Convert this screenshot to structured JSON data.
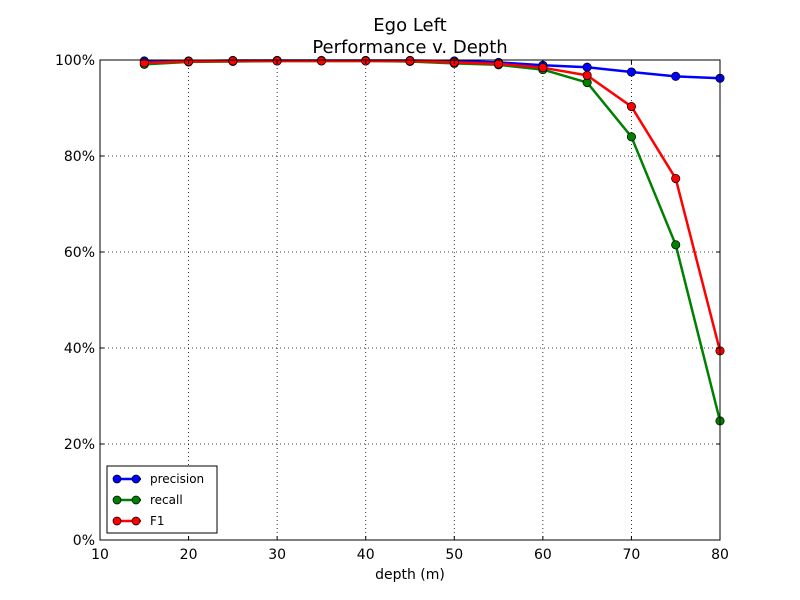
{
  "chart_data": {
    "type": "line",
    "title": "Ego Left",
    "subtitle": "Performance v. Depth",
    "xlabel": "depth (m)",
    "ylabel": "",
    "xlim": [
      10,
      80
    ],
    "ylim": [
      0,
      100
    ],
    "x_ticks": [
      "10",
      "20",
      "30",
      "40",
      "50",
      "60",
      "70",
      "80"
    ],
    "y_ticks": [
      "0%",
      "20%",
      "40%",
      "60%",
      "80%",
      "100%"
    ],
    "grid": true,
    "legend_position": "lower-left",
    "x": [
      15,
      20,
      25,
      30,
      35,
      40,
      45,
      50,
      55,
      60,
      65,
      70,
      75,
      80
    ],
    "series": [
      {
        "name": "precision",
        "color": "#0000ff",
        "values": [
          99.8,
          99.8,
          99.9,
          99.9,
          99.9,
          99.9,
          99.9,
          99.8,
          99.5,
          98.9,
          98.5,
          97.5,
          96.6,
          96.2
        ]
      },
      {
        "name": "recall",
        "color": "#008000",
        "values": [
          99.1,
          99.6,
          99.7,
          99.8,
          99.8,
          99.8,
          99.7,
          99.3,
          99.0,
          98.0,
          95.3,
          84.0,
          61.5,
          24.8
        ]
      },
      {
        "name": "F1",
        "color": "#ff0000",
        "values": [
          99.4,
          99.7,
          99.8,
          99.8,
          99.8,
          99.8,
          99.8,
          99.5,
          99.2,
          98.4,
          96.8,
          90.3,
          75.3,
          39.4
        ]
      }
    ]
  }
}
